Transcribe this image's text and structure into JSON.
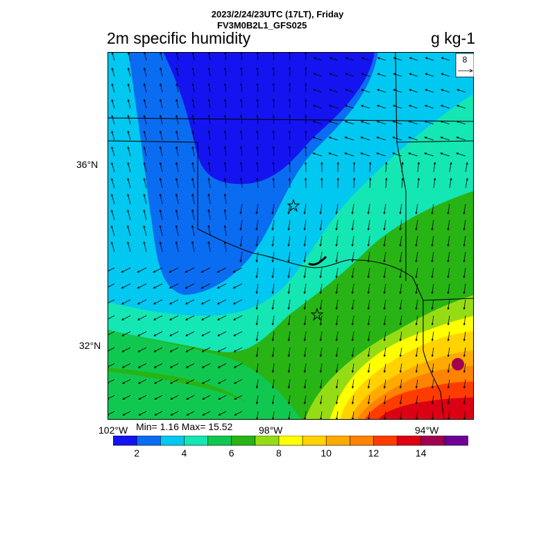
{
  "header": {
    "time_line": "2023/2/24/23UTC (17LT), Friday",
    "model_line": "FV3M0B2L1_GFS025",
    "field_title": "2m specific humidity",
    "units": "g kg-1"
  },
  "map": {
    "lat_labels": [
      "36°N",
      "32°N"
    ],
    "lon_labels": [
      "102°W",
      "98°W",
      "94°W"
    ],
    "stats": "Min= 1.16 Max= 15.52",
    "reference_vector": "8",
    "colors": {
      "state_border": "#000000",
      "star_marker": "#000000"
    }
  },
  "colorbar": {
    "colors": [
      "#1414f0",
      "#0a6cf0",
      "#00c8f0",
      "#14e6b4",
      "#10c850",
      "#28b414",
      "#96dc14",
      "#ffff00",
      "#ffd200",
      "#ffaa00",
      "#ff8200",
      "#ff3c00",
      "#dc0014",
      "#a00050",
      "#6e0096"
    ],
    "tick_labels": [
      "2",
      "4",
      "6",
      "8",
      "10",
      "12",
      "14"
    ]
  }
}
